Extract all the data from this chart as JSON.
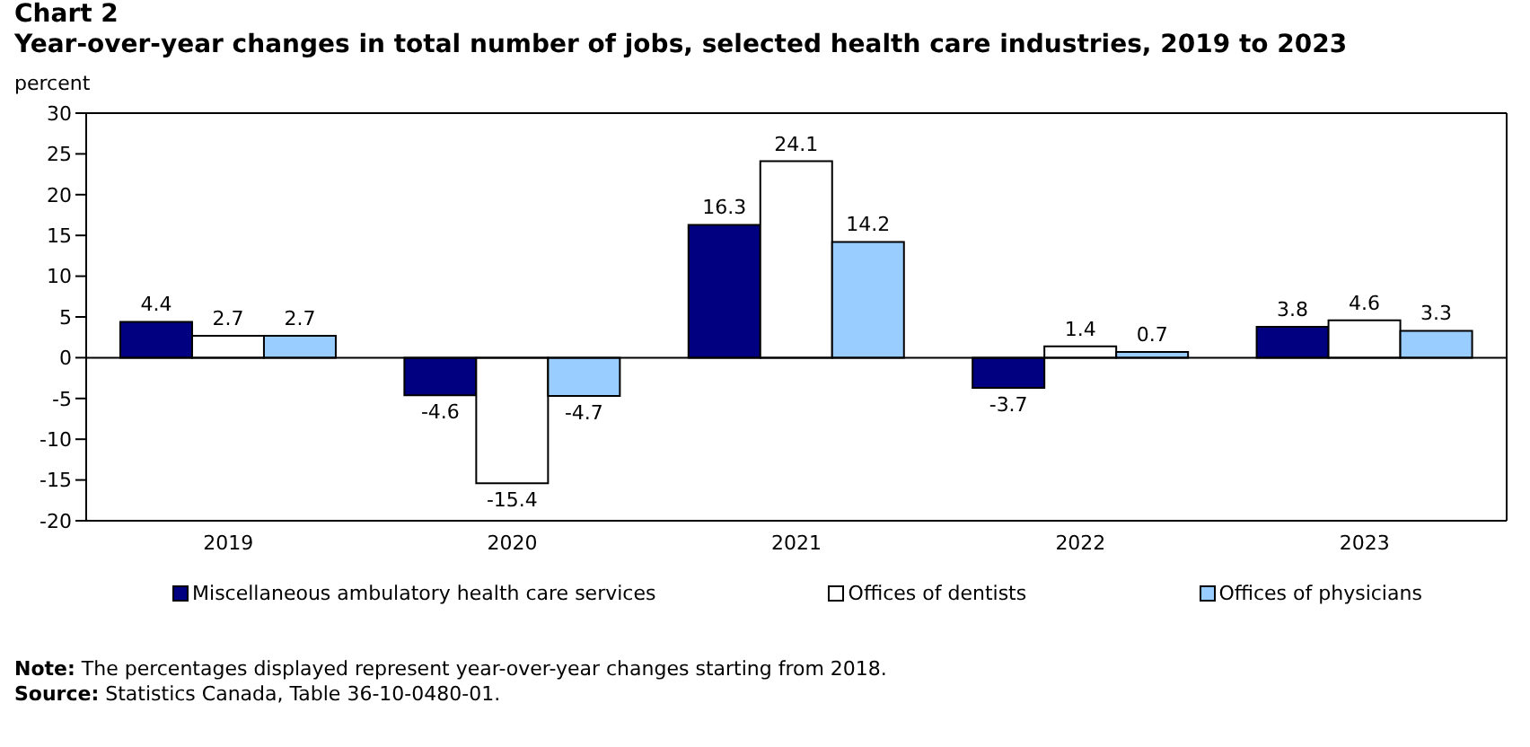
{
  "chart_data": {
    "type": "bar",
    "title": "Chart 2",
    "subtitle": "Year-over-year changes in total number of jobs, selected health care industries, 2019 to 2023",
    "ylabel": "percent",
    "categories": [
      "2019",
      "2020",
      "2021",
      "2022",
      "2023"
    ],
    "series": [
      {
        "name": "Miscellaneous ambulatory health care services",
        "color": "#000080",
        "values": [
          4.4,
          -4.6,
          16.3,
          -3.7,
          3.8
        ]
      },
      {
        "name": "Offices of dentists",
        "color": "#ffffff",
        "values": [
          2.7,
          -15.4,
          24.1,
          1.4,
          4.6
        ]
      },
      {
        "name": "Offices of physicians",
        "color": "#99ccff",
        "values": [
          2.7,
          -4.7,
          14.2,
          0.7,
          3.3
        ]
      }
    ],
    "ylim": [
      -20,
      30
    ],
    "yticks": [
      -20,
      -15,
      -10,
      -5,
      0,
      5,
      10,
      15,
      20,
      25,
      30
    ],
    "ref_lines": [
      {
        "axis": "y",
        "value": 0,
        "color": "#000000"
      }
    ],
    "legend": "bottom",
    "data_labels": true,
    "annotations": [
      "Note: The percentages displayed represent year-over-year changes starting from 2018.",
      "Source: Statistics Canada, Table 36-10-0480-01."
    ]
  }
}
